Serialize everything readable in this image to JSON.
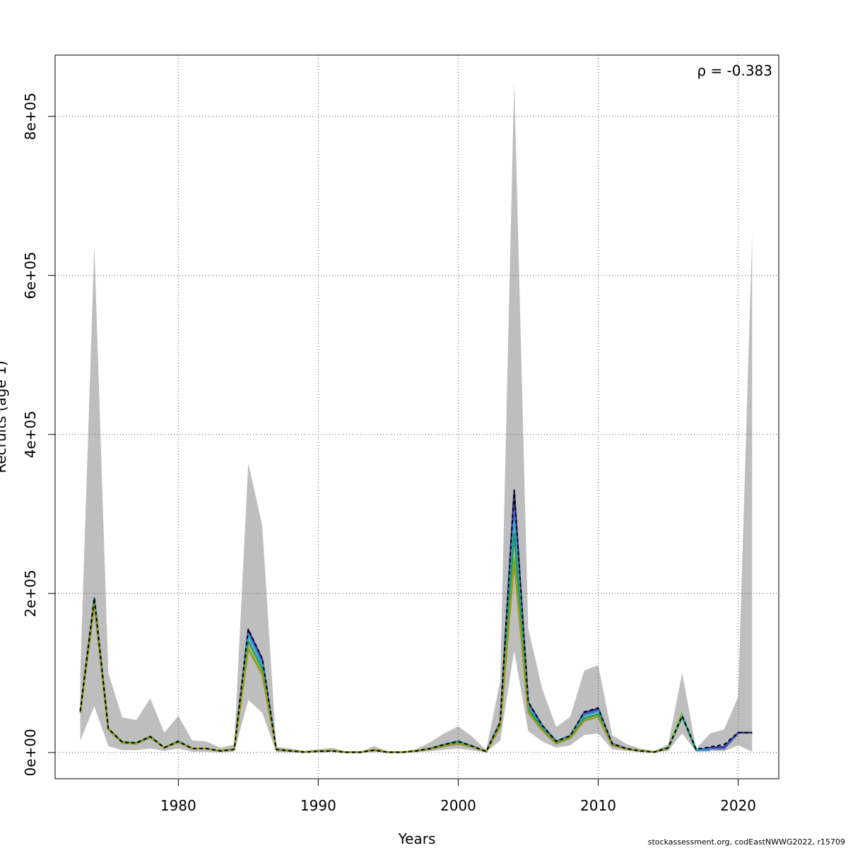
{
  "chart_data": {
    "type": "line",
    "title": "",
    "xlabel": "Years",
    "ylabel": "Recruits (age 1)",
    "annotation": "ρ = -0.383",
    "credit": "stockassessment.org, codEastNWWG2022, r15709",
    "xlim": [
      1971.2,
      2022.9
    ],
    "ylim": [
      -33000,
      877000
    ],
    "grid": true,
    "x_ticks": [
      1980,
      1990,
      2000,
      2010,
      2020
    ],
    "x_tick_labels": [
      "1980",
      "1990",
      "2000",
      "2010",
      "2020"
    ],
    "y_ticks": [
      0,
      200000,
      400000,
      600000,
      800000
    ],
    "y_tick_labels": [
      "0e+00",
      "2e+05",
      "4e+05",
      "6e+05",
      "8e+05"
    ],
    "band": {
      "color": "#bebebe",
      "x": [
        1973,
        1974,
        1975,
        1976,
        1977,
        1978,
        1979,
        1980,
        1981,
        1982,
        1983,
        1984,
        1985,
        1986,
        1987,
        1988,
        1989,
        1990,
        1991,
        1992,
        1993,
        1994,
        1995,
        1996,
        1997,
        1998,
        1999,
        2000,
        2001,
        2002,
        2003,
        2004,
        2005,
        2006,
        2007,
        2008,
        2009,
        2010,
        2011,
        2012,
        2013,
        2014,
        2015,
        2016,
        2017,
        2018,
        2019,
        2020,
        2021
      ],
      "upper": [
        100000,
        637000,
        100000,
        44000,
        41000,
        68000,
        25000,
        46000,
        15000,
        14000,
        6000,
        10000,
        364000,
        285000,
        7000,
        5000,
        2000,
        4000,
        6000,
        1000,
        1000,
        8000,
        1000,
        1000,
        4000,
        13000,
        24000,
        33000,
        20000,
        3000,
        90000,
        843000,
        156000,
        80000,
        32000,
        45000,
        103000,
        110000,
        22000,
        11000,
        5000,
        2000,
        10000,
        100000,
        5000,
        24000,
        29000,
        70000,
        651000
      ],
      "lower": [
        15000,
        58000,
        8000,
        3000,
        3000,
        5000,
        2000,
        5000,
        1000,
        1000,
        300,
        1000,
        66000,
        50000,
        500,
        300,
        100,
        200,
        500,
        100,
        100,
        500,
        50,
        50,
        300,
        1500,
        3500,
        5000,
        2500,
        500,
        15000,
        128000,
        27000,
        14000,
        6000,
        9000,
        22000,
        24000,
        4000,
        2000,
        600,
        300,
        2000,
        24000,
        1000,
        2000,
        1500,
        9000,
        1000
      ]
    },
    "series": [
      {
        "color": "#2d2b7d",
        "dashed": false,
        "values": [
          52000,
          194000,
          30000,
          13000,
          12000,
          20000,
          6000,
          14000,
          5000,
          5000,
          2000,
          4000,
          154000,
          117000,
          4000,
          2000,
          500,
          1500,
          2000,
          300,
          300,
          3000,
          300,
          300,
          2000,
          5000,
          10000,
          14000,
          8000,
          1200,
          38000,
          328000,
          63000,
          34000,
          14000,
          21000,
          50000,
          55000,
          11000,
          5000,
          2000,
          500,
          6000,
          46000,
          2500,
          6000,
          7000,
          25000,
          25000
        ]
      },
      {
        "color": "#4b61ce",
        "dashed": false,
        "values": [
          52000,
          193000,
          30000,
          13000,
          12000,
          20000,
          6000,
          14000,
          5000,
          5000,
          2000,
          4000,
          150000,
          113000,
          4000,
          2000,
          500,
          1500,
          2000,
          300,
          300,
          3000,
          300,
          300,
          2000,
          5000,
          10000,
          14000,
          8000,
          1200,
          37000,
          305000,
          60000,
          33000,
          13000,
          21000,
          48000,
          53000,
          11000,
          5000,
          2000,
          500,
          6000,
          46000,
          3000,
          5000,
          5000,
          24000,
          null
        ]
      },
      {
        "color": "#3fa5d8",
        "dashed": false,
        "values": [
          52000,
          193000,
          30000,
          13000,
          12000,
          20000,
          6000,
          14000,
          5000,
          5000,
          2000,
          4000,
          147000,
          110000,
          4000,
          2000,
          500,
          1500,
          2000,
          300,
          300,
          3000,
          300,
          300,
          2000,
          5000,
          10000,
          13000,
          8000,
          1200,
          36000,
          290000,
          57000,
          31000,
          13000,
          20000,
          46000,
          51000,
          10000,
          5000,
          2000,
          500,
          6000,
          47000,
          2500,
          2500,
          null,
          null,
          null
        ]
      },
      {
        "color": "#1a9e5e",
        "dashed": false,
        "values": [
          52000,
          191000,
          30000,
          13000,
          12000,
          20000,
          6000,
          14000,
          5000,
          5000,
          2000,
          4000,
          140000,
          105000,
          3500,
          2000,
          500,
          1500,
          2000,
          300,
          300,
          3000,
          300,
          300,
          2000,
          5000,
          9000,
          12000,
          7500,
          1100,
          35000,
          275000,
          55000,
          30000,
          12000,
          19000,
          43000,
          48000,
          10000,
          5000,
          2000,
          500,
          5000,
          45000,
          3000,
          null,
          null,
          null,
          null
        ]
      },
      {
        "color": "#7cbc3a",
        "dashed": false,
        "values": [
          50000,
          187000,
          30000,
          12000,
          11000,
          19000,
          6000,
          13000,
          5000,
          5000,
          2000,
          4000,
          132000,
          100000,
          3500,
          2000,
          500,
          1500,
          2000,
          300,
          300,
          3000,
          300,
          300,
          2000,
          4500,
          8000,
          11000,
          7000,
          1000,
          33000,
          244000,
          50000,
          28000,
          11000,
          18000,
          40000,
          45000,
          9000,
          4500,
          2000,
          500,
          5000,
          50000,
          null,
          null,
          null,
          null,
          null
        ]
      },
      {
        "color": "#9a9a1a",
        "dashed": false,
        "values": [
          50000,
          185000,
          29000,
          12000,
          11000,
          19000,
          6000,
          13000,
          5000,
          5000,
          2000,
          4000,
          130000,
          98000,
          3500,
          2000,
          500,
          1500,
          2000,
          300,
          300,
          3000,
          300,
          300,
          2000,
          4500,
          8000,
          11000,
          7000,
          1000,
          32000,
          240000,
          50000,
          28000,
          11000,
          18000,
          40000,
          45000,
          9000,
          4500,
          2000,
          500,
          5000,
          null,
          null,
          null,
          null,
          null,
          null
        ]
      },
      {
        "color": "#000000",
        "dashed": true,
        "values": [
          52000,
          194000,
          30000,
          13000,
          12000,
          20000,
          6000,
          14000,
          5000,
          5000,
          2000,
          4000,
          155000,
          118000,
          4000,
          2000,
          500,
          1500,
          2000,
          300,
          300,
          3000,
          300,
          300,
          2000,
          5000,
          10000,
          14000,
          8000,
          1200,
          38000,
          330000,
          64000,
          34000,
          14000,
          21000,
          51000,
          56000,
          11000,
          5000,
          2000,
          500,
          6000,
          46000,
          4000,
          7000,
          10000,
          25000,
          25000
        ]
      }
    ]
  }
}
